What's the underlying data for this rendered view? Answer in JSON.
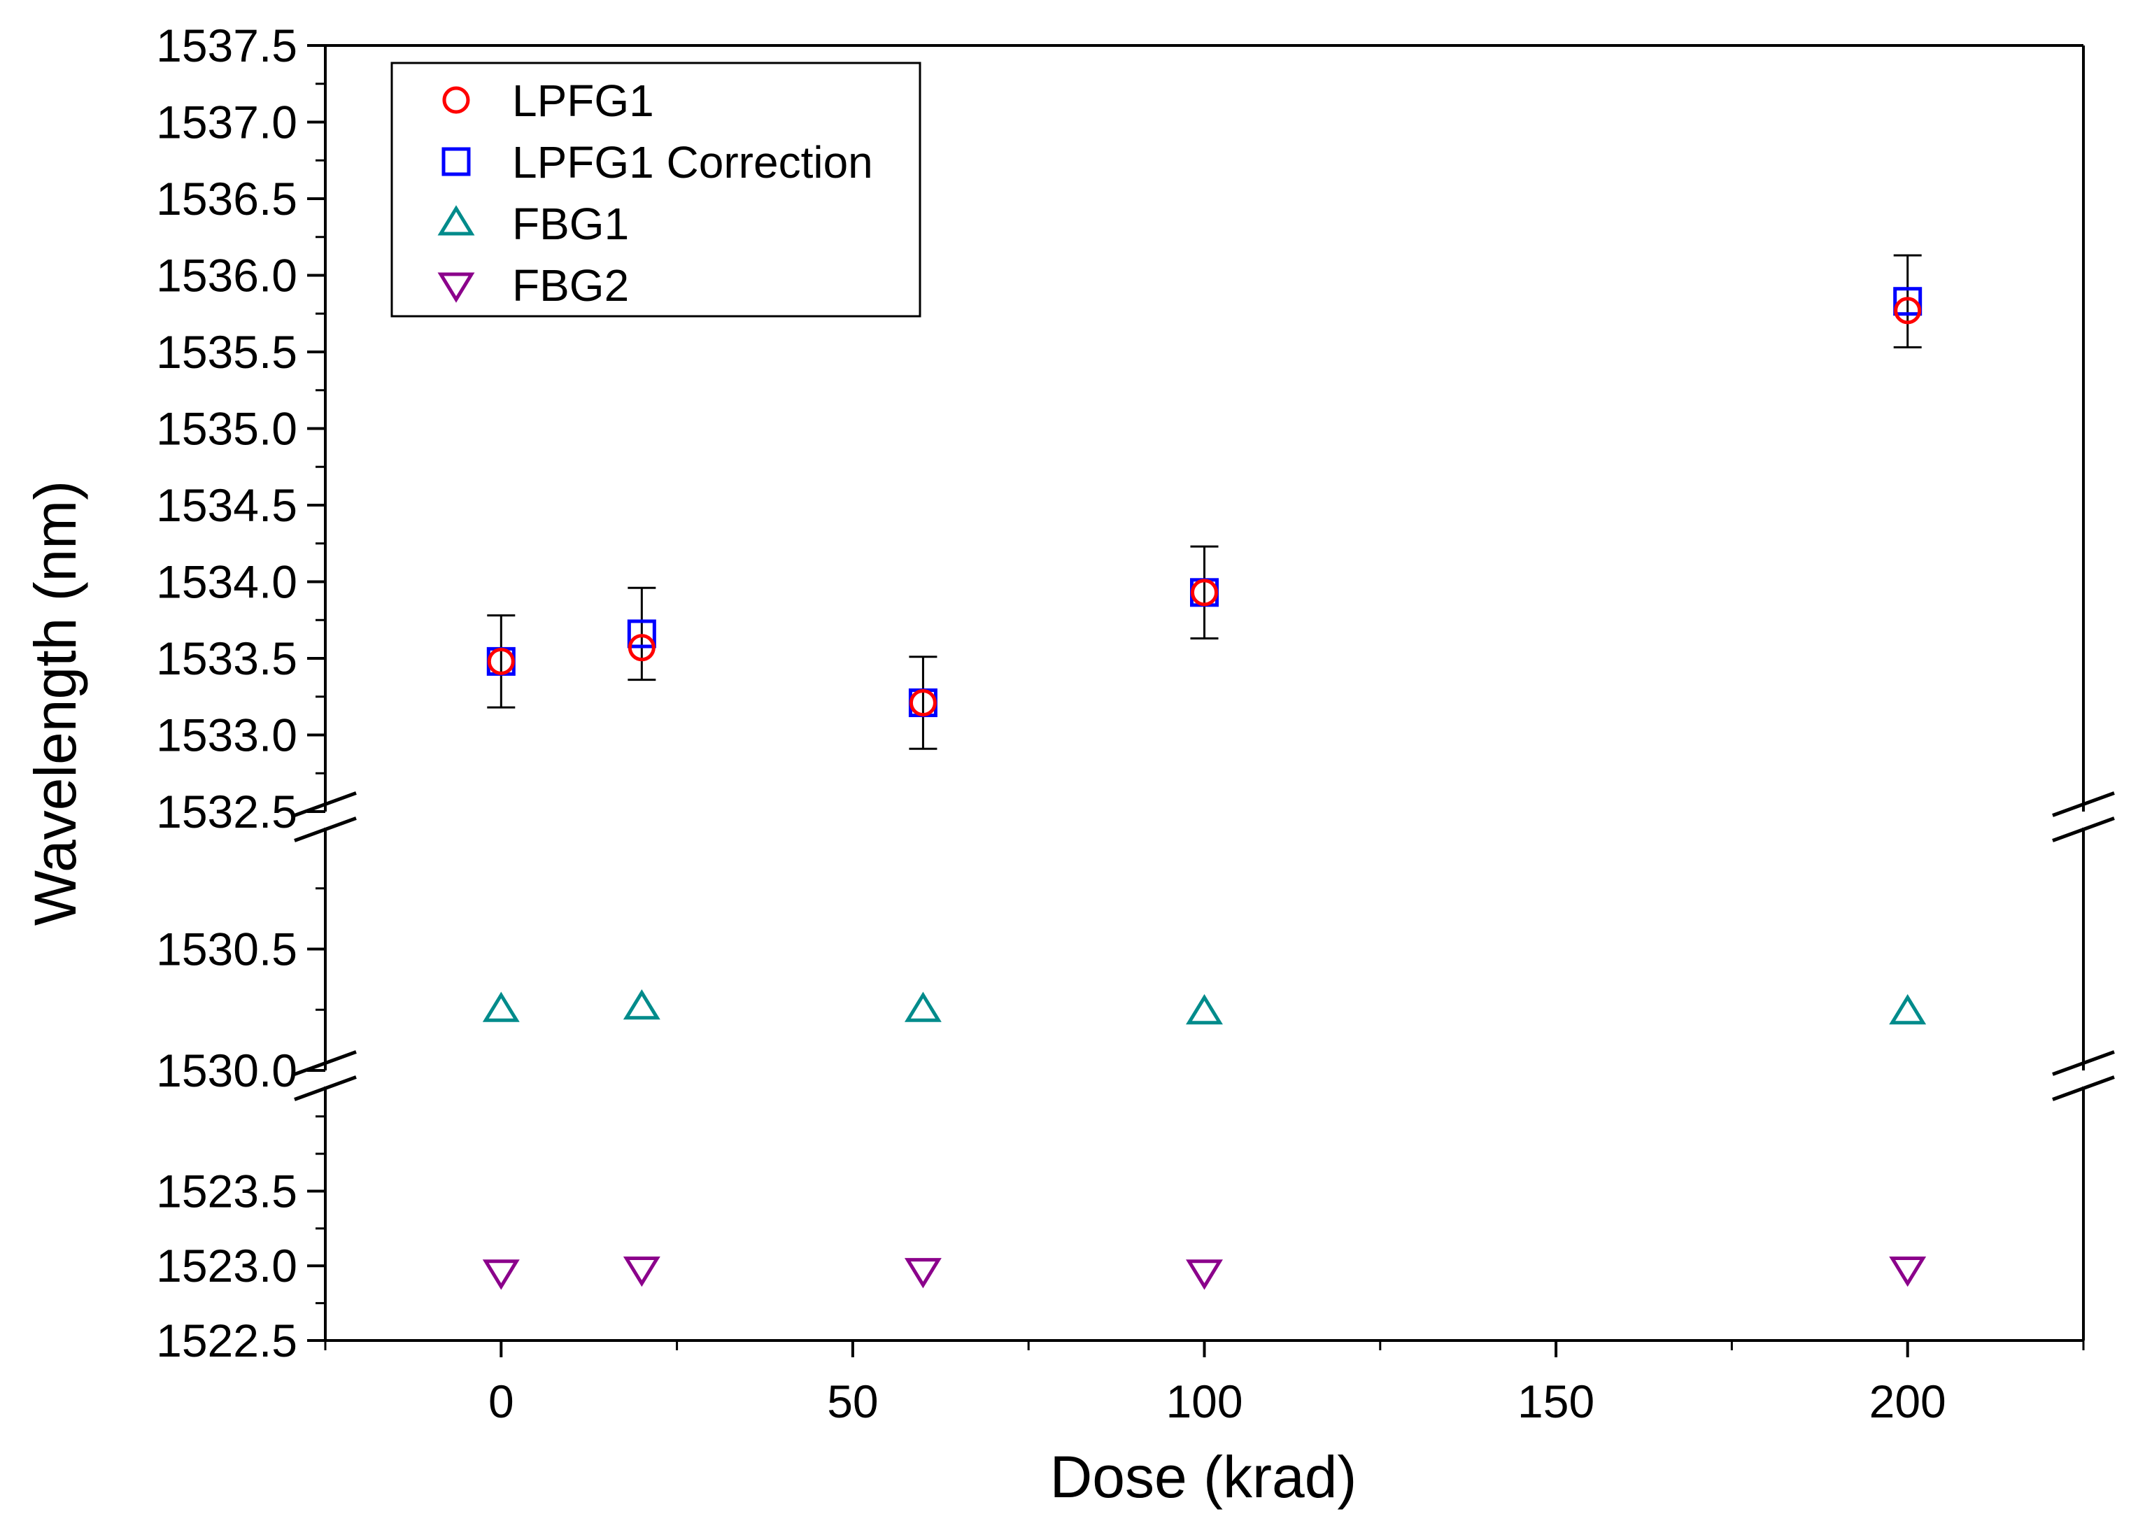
{
  "chart_data": {
    "type": "scatter",
    "title": "",
    "xlabel": "Dose (krad)",
    "ylabel": "Wavelength (nm)",
    "xlim": [
      -25,
      225
    ],
    "x_ticks": [
      0,
      50,
      100,
      150,
      200
    ],
    "x_tick_labels": [
      "0",
      "50",
      "100",
      "150",
      "200"
    ],
    "y_axis_broken": true,
    "y_segments": [
      {
        "name": "top",
        "range": [
          1532.5,
          1537.5
        ],
        "ticks": [
          1532.5,
          1533.0,
          1533.5,
          1534.0,
          1534.5,
          1535.0,
          1535.5,
          1536.0,
          1536.5,
          1537.0,
          1537.5
        ],
        "tick_labels": [
          "1532.5",
          "1533.0",
          "1533.5",
          "1534.0",
          "1534.5",
          "1535.0",
          "1535.5",
          "1536.0",
          "1536.5",
          "1537.0",
          "1537.5"
        ]
      },
      {
        "name": "middle",
        "range": [
          1530.0,
          1531.0
        ],
        "ticks": [
          1530.0,
          1530.5
        ],
        "tick_labels": [
          "1530.0",
          "1530.5"
        ]
      },
      {
        "name": "bottom",
        "range": [
          1522.5,
          1524.2
        ],
        "ticks": [
          1522.5,
          1523.0,
          1523.5
        ],
        "tick_labels": [
          "1522.5",
          "1523.0",
          "1523.5"
        ]
      }
    ],
    "legend_position": "top-left",
    "series": [
      {
        "name": "LPFG1",
        "marker": "circle",
        "color": "#ff0000",
        "x": [
          0,
          20,
          60,
          100,
          200
        ],
        "y": [
          1533.48,
          1533.57,
          1533.21,
          1533.93,
          1535.77
        ]
      },
      {
        "name": "LPFG1 Correction",
        "marker": "square",
        "color": "#0000ff",
        "x": [
          0,
          20,
          60,
          100,
          200
        ],
        "y": [
          1533.48,
          1533.66,
          1533.21,
          1533.93,
          1535.83
        ],
        "error": [
          0.3,
          0.3,
          0.3,
          0.3,
          0.3
        ]
      },
      {
        "name": "FBG1",
        "marker": "triangle-up",
        "color": "#008b8b",
        "x": [
          0,
          20,
          60,
          100,
          200
        ],
        "y": [
          1530.25,
          1530.26,
          1530.25,
          1530.24,
          1530.24
        ]
      },
      {
        "name": "FBG2",
        "marker": "triangle-down",
        "color": "#8b008b",
        "x": [
          0,
          20,
          60,
          100,
          200
        ],
        "y": [
          1522.96,
          1522.98,
          1522.97,
          1522.96,
          1522.98
        ]
      }
    ]
  }
}
